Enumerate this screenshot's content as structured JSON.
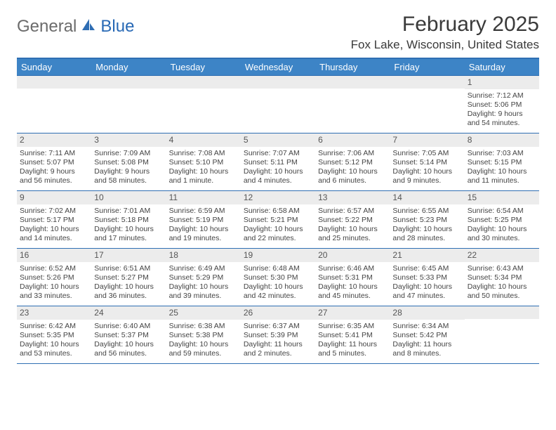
{
  "brand": {
    "word1": "General",
    "word2": "Blue",
    "icon_color": "#2e6db3"
  },
  "title": "February 2025",
  "location": "Fox Lake, Wisconsin, United States",
  "colors": {
    "header_bg": "#3d84c6",
    "header_text": "#ffffff",
    "border": "#2f6fb3",
    "daynum_bg": "#ececec",
    "text": "#444444"
  },
  "day_headers": [
    "Sunday",
    "Monday",
    "Tuesday",
    "Wednesday",
    "Thursday",
    "Friday",
    "Saturday"
  ],
  "weeks": [
    [
      null,
      null,
      null,
      null,
      null,
      null,
      {
        "n": "1",
        "sunrise": "7:12 AM",
        "sunset": "5:06 PM",
        "daylight": "9 hours and 54 minutes."
      }
    ],
    [
      {
        "n": "2",
        "sunrise": "7:11 AM",
        "sunset": "5:07 PM",
        "daylight": "9 hours and 56 minutes."
      },
      {
        "n": "3",
        "sunrise": "7:09 AM",
        "sunset": "5:08 PM",
        "daylight": "9 hours and 58 minutes."
      },
      {
        "n": "4",
        "sunrise": "7:08 AM",
        "sunset": "5:10 PM",
        "daylight": "10 hours and 1 minute."
      },
      {
        "n": "5",
        "sunrise": "7:07 AM",
        "sunset": "5:11 PM",
        "daylight": "10 hours and 4 minutes."
      },
      {
        "n": "6",
        "sunrise": "7:06 AM",
        "sunset": "5:12 PM",
        "daylight": "10 hours and 6 minutes."
      },
      {
        "n": "7",
        "sunrise": "7:05 AM",
        "sunset": "5:14 PM",
        "daylight": "10 hours and 9 minutes."
      },
      {
        "n": "8",
        "sunrise": "7:03 AM",
        "sunset": "5:15 PM",
        "daylight": "10 hours and 11 minutes."
      }
    ],
    [
      {
        "n": "9",
        "sunrise": "7:02 AM",
        "sunset": "5:17 PM",
        "daylight": "10 hours and 14 minutes."
      },
      {
        "n": "10",
        "sunrise": "7:01 AM",
        "sunset": "5:18 PM",
        "daylight": "10 hours and 17 minutes."
      },
      {
        "n": "11",
        "sunrise": "6:59 AM",
        "sunset": "5:19 PM",
        "daylight": "10 hours and 19 minutes."
      },
      {
        "n": "12",
        "sunrise": "6:58 AM",
        "sunset": "5:21 PM",
        "daylight": "10 hours and 22 minutes."
      },
      {
        "n": "13",
        "sunrise": "6:57 AM",
        "sunset": "5:22 PM",
        "daylight": "10 hours and 25 minutes."
      },
      {
        "n": "14",
        "sunrise": "6:55 AM",
        "sunset": "5:23 PM",
        "daylight": "10 hours and 28 minutes."
      },
      {
        "n": "15",
        "sunrise": "6:54 AM",
        "sunset": "5:25 PM",
        "daylight": "10 hours and 30 minutes."
      }
    ],
    [
      {
        "n": "16",
        "sunrise": "6:52 AM",
        "sunset": "5:26 PM",
        "daylight": "10 hours and 33 minutes."
      },
      {
        "n": "17",
        "sunrise": "6:51 AM",
        "sunset": "5:27 PM",
        "daylight": "10 hours and 36 minutes."
      },
      {
        "n": "18",
        "sunrise": "6:49 AM",
        "sunset": "5:29 PM",
        "daylight": "10 hours and 39 minutes."
      },
      {
        "n": "19",
        "sunrise": "6:48 AM",
        "sunset": "5:30 PM",
        "daylight": "10 hours and 42 minutes."
      },
      {
        "n": "20",
        "sunrise": "6:46 AM",
        "sunset": "5:31 PM",
        "daylight": "10 hours and 45 minutes."
      },
      {
        "n": "21",
        "sunrise": "6:45 AM",
        "sunset": "5:33 PM",
        "daylight": "10 hours and 47 minutes."
      },
      {
        "n": "22",
        "sunrise": "6:43 AM",
        "sunset": "5:34 PM",
        "daylight": "10 hours and 50 minutes."
      }
    ],
    [
      {
        "n": "23",
        "sunrise": "6:42 AM",
        "sunset": "5:35 PM",
        "daylight": "10 hours and 53 minutes."
      },
      {
        "n": "24",
        "sunrise": "6:40 AM",
        "sunset": "5:37 PM",
        "daylight": "10 hours and 56 minutes."
      },
      {
        "n": "25",
        "sunrise": "6:38 AM",
        "sunset": "5:38 PM",
        "daylight": "10 hours and 59 minutes."
      },
      {
        "n": "26",
        "sunrise": "6:37 AM",
        "sunset": "5:39 PM",
        "daylight": "11 hours and 2 minutes."
      },
      {
        "n": "27",
        "sunrise": "6:35 AM",
        "sunset": "5:41 PM",
        "daylight": "11 hours and 5 minutes."
      },
      {
        "n": "28",
        "sunrise": "6:34 AM",
        "sunset": "5:42 PM",
        "daylight": "11 hours and 8 minutes."
      },
      null
    ]
  ],
  "labels": {
    "sunrise": "Sunrise:",
    "sunset": "Sunset:",
    "daylight": "Daylight:"
  }
}
